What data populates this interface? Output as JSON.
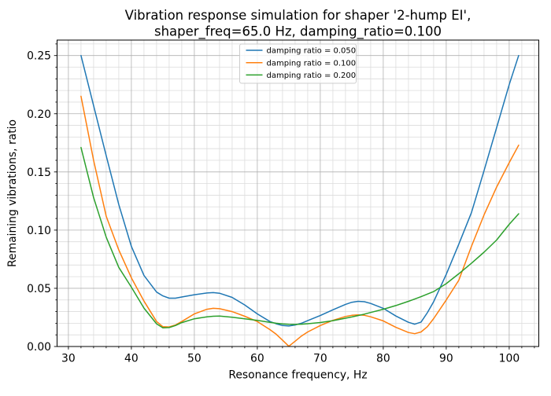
{
  "chart_data": {
    "type": "line",
    "title": "Vibration response simulation for shaper '2-hump EI',\nshaper_freq=65.0 Hz, damping_ratio=0.100",
    "title_lines": [
      "Vibration response simulation for shaper '2-hump EI',",
      "shaper_freq=65.0 Hz, damping_ratio=0.100"
    ],
    "shaper_name": "2-hump EI",
    "shaper_freq_hz": 65.0,
    "damping_ratio": 0.1,
    "xlabel": "Resonance frequency, Hz",
    "ylabel": "Remaining vibrations, ratio",
    "xlim": [
      28.2,
      104.7
    ],
    "ylim": [
      0,
      0.2633
    ],
    "x_ticks": [
      30,
      40,
      50,
      60,
      70,
      80,
      90,
      100
    ],
    "y_ticks": [
      0.0,
      0.05,
      0.1,
      0.15,
      0.2,
      0.25
    ],
    "x_minor_step": 2,
    "y_minor_step": 0.01,
    "grid": "both",
    "legend_position": "upper center",
    "colors": {
      "major_grid": "#b0b0b0",
      "minor_grid": "#dcdcdc",
      "spine": "#000000",
      "legend_border": "#cccccc",
      "background": "#ffffff"
    },
    "x": [
      32,
      34,
      36,
      38,
      40,
      42,
      44,
      45,
      46,
      47,
      48,
      50,
      52,
      53,
      54,
      56,
      58,
      60,
      62,
      63,
      64,
      65,
      66,
      67,
      68,
      70,
      72,
      74,
      75,
      76,
      77,
      78,
      80,
      82,
      84,
      85,
      86,
      87,
      88,
      90,
      92,
      94,
      96,
      98,
      100,
      101.5
    ],
    "series": [
      {
        "name": "damping ratio = 0.050",
        "color": "#1f77b4",
        "values": [
          0.25,
          0.207,
          0.164,
          0.122,
          0.086,
          0.061,
          0.0468,
          0.0435,
          0.0415,
          0.0415,
          0.0425,
          0.0445,
          0.046,
          0.0463,
          0.0458,
          0.0422,
          0.0357,
          0.028,
          0.0215,
          0.0195,
          0.018,
          0.0176,
          0.0185,
          0.02,
          0.0222,
          0.0266,
          0.0315,
          0.0362,
          0.038,
          0.0388,
          0.0385,
          0.037,
          0.0328,
          0.0262,
          0.0208,
          0.0192,
          0.021,
          0.029,
          0.0385,
          0.062,
          0.088,
          0.115,
          0.151,
          0.188,
          0.225,
          0.25
        ]
      },
      {
        "name": "damping ratio = 0.100",
        "color": "#ff7f0e",
        "values": [
          0.215,
          0.16,
          0.112,
          0.083,
          0.059,
          0.039,
          0.0215,
          0.017,
          0.0168,
          0.0185,
          0.0215,
          0.028,
          0.032,
          0.0328,
          0.0325,
          0.03,
          0.026,
          0.0215,
          0.0145,
          0.0105,
          0.0055,
          0.0002,
          0.0045,
          0.009,
          0.0125,
          0.018,
          0.0225,
          0.0258,
          0.0268,
          0.0272,
          0.0268,
          0.0255,
          0.022,
          0.0165,
          0.012,
          0.011,
          0.0125,
          0.017,
          0.024,
          0.04,
          0.057,
          0.086,
          0.113,
          0.137,
          0.158,
          0.173
        ]
      },
      {
        "name": "damping ratio = 0.200",
        "color": "#2ca02c",
        "values": [
          0.171,
          0.128,
          0.094,
          0.068,
          0.051,
          0.033,
          0.0195,
          0.016,
          0.0163,
          0.018,
          0.0205,
          0.0238,
          0.0255,
          0.026,
          0.0261,
          0.0252,
          0.0238,
          0.0225,
          0.0208,
          0.02,
          0.0194,
          0.0191,
          0.019,
          0.0192,
          0.0196,
          0.0206,
          0.0222,
          0.0243,
          0.0254,
          0.0266,
          0.0278,
          0.0292,
          0.032,
          0.0352,
          0.0388,
          0.0408,
          0.0428,
          0.045,
          0.0472,
          0.054,
          0.0625,
          0.0715,
          0.081,
          0.0915,
          0.105,
          0.114
        ]
      }
    ]
  }
}
